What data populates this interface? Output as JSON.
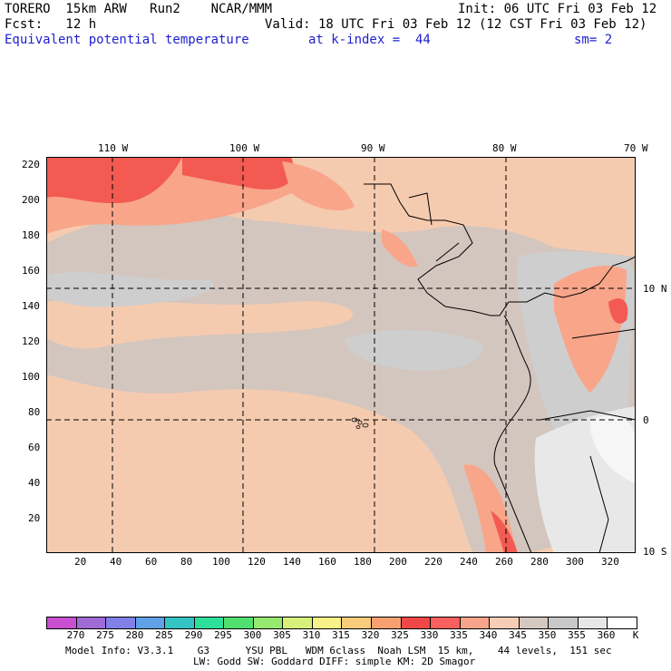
{
  "header": {
    "model": "TORERO  15km ARW   Run2    NCAR/MMM",
    "init": "Init: 06 UTC Fri 03 Feb 12",
    "fcst": "Fcst:   12 h",
    "valid": "Valid: 18 UTC Fri 03 Feb 12 (12 CST Fri 03 Feb 12)",
    "field": "Equivalent potential temperature",
    "level": "at k-index =  44",
    "smooth": "sm= 2"
  },
  "map": {
    "lon_labels": [
      "110 W",
      "100 W",
      "90 W",
      "80 W",
      "70 W"
    ],
    "lat_labels": [
      "10 N",
      "0",
      "10 S"
    ],
    "y_ticks": [
      "220",
      "200",
      "180",
      "160",
      "140",
      "120",
      "100",
      "80",
      "60",
      "40",
      "20"
    ],
    "x_ticks": [
      "20",
      "40",
      "60",
      "80",
      "100",
      "120",
      "140",
      "160",
      "180",
      "200",
      "220",
      "240",
      "260",
      "280",
      "300",
      "320"
    ]
  },
  "colorbar": {
    "unit": "K",
    "levels": [
      "270",
      "275",
      "280",
      "285",
      "290",
      "295",
      "300",
      "305",
      "310",
      "315",
      "320",
      "325",
      "330",
      "335",
      "340",
      "345",
      "350",
      "355",
      "360"
    ],
    "colors": [
      "#c84fd0",
      "#9f6bd6",
      "#8080e8",
      "#5fa0e6",
      "#35c4c4",
      "#2fe09a",
      "#50e070",
      "#96e870",
      "#d6f07a",
      "#f8f088",
      "#f7cc7a",
      "#f7a070",
      "#f04848",
      "#f86060",
      "#f8a48a",
      "#f7cdb6",
      "#d4c8c0",
      "#c8c8c8",
      "#e6e6e6",
      "#ffffff"
    ],
    "palette_names": {
      "ocean": "#f5cbb0",
      "gray": "#d3c6be",
      "lightgray": "#cecece",
      "warm": "#f8a58a",
      "red": "#f25a52"
    }
  },
  "footer": {
    "line1": "Model Info: V3.3.1    G3      YSU PBL   WDM 6class  Noah LSM  15 km,    44 levels,  151 sec",
    "line2": "LW: Godd SW: Goddard DIFF: simple KM: 2D Smagor"
  }
}
